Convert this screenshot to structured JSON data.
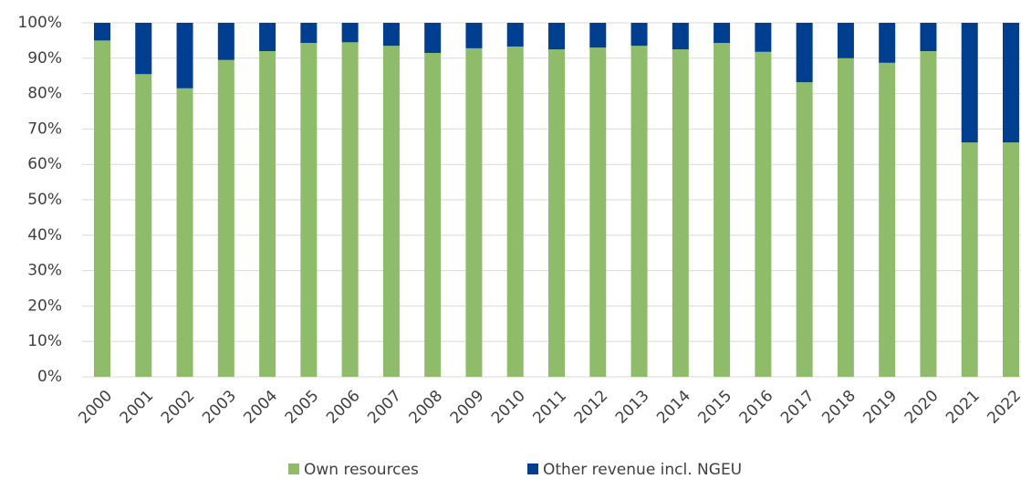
{
  "chart_data": {
    "type": "stacked_bar",
    "categories": [
      "2000",
      "2001",
      "2002",
      "2003",
      "2004",
      "2005",
      "2006",
      "2007",
      "2008",
      "2009",
      "2010",
      "2011",
      "2012",
      "2013",
      "2014",
      "2015",
      "2016",
      "2017",
      "2018",
      "2019",
      "2020",
      "2021",
      "2022"
    ],
    "series": [
      {
        "name": "Own resources",
        "color": "#8fbc6b",
        "values": [
          95,
          85.5,
          81.5,
          89.5,
          92,
          94.3,
          94.5,
          93.5,
          91.5,
          92.8,
          93.3,
          92.5,
          93,
          93.5,
          92.5,
          94.3,
          91.8,
          83.2,
          90,
          88.7,
          92,
          66.2,
          66.2
        ]
      },
      {
        "name": "Other revenue incl. NGEU",
        "color": "#003f8f",
        "values": [
          5,
          14.5,
          18.5,
          10.5,
          8,
          5.7,
          5.5,
          6.5,
          8.5,
          7.2,
          6.7,
          7.5,
          7,
          6.5,
          7.5,
          5.7,
          8.2,
          16.8,
          10,
          11.3,
          8,
          33.8,
          33.8
        ]
      }
    ],
    "ylim": [
      0,
      100
    ],
    "yticks": [
      {
        "value": 0,
        "label": "0%"
      },
      {
        "value": 10,
        "label": "10%"
      },
      {
        "value": 20,
        "label": "20%"
      },
      {
        "value": 30,
        "label": "30%"
      },
      {
        "value": 40,
        "label": "40%"
      },
      {
        "value": 50,
        "label": "50%"
      },
      {
        "value": 60,
        "label": "60%"
      },
      {
        "value": 70,
        "label": "70%"
      },
      {
        "value": 80,
        "label": "80%"
      },
      {
        "value": 90,
        "label": "90%"
      },
      {
        "value": 100,
        "label": "100%"
      }
    ],
    "grid": true,
    "legend": "bottom"
  }
}
